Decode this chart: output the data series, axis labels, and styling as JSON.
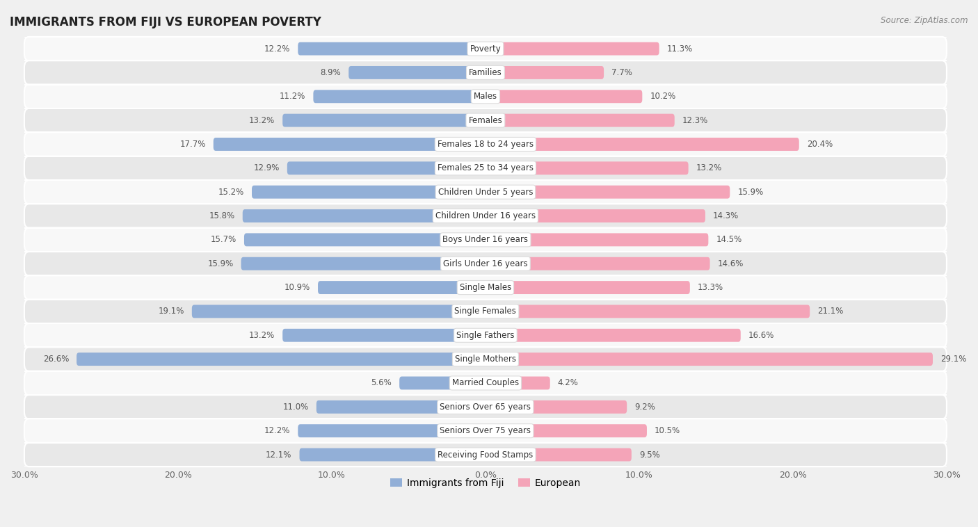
{
  "title": "IMMIGRANTS FROM FIJI VS EUROPEAN POVERTY",
  "source": "Source: ZipAtlas.com",
  "categories": [
    "Poverty",
    "Families",
    "Males",
    "Females",
    "Females 18 to 24 years",
    "Females 25 to 34 years",
    "Children Under 5 years",
    "Children Under 16 years",
    "Boys Under 16 years",
    "Girls Under 16 years",
    "Single Males",
    "Single Females",
    "Single Fathers",
    "Single Mothers",
    "Married Couples",
    "Seniors Over 65 years",
    "Seniors Over 75 years",
    "Receiving Food Stamps"
  ],
  "fiji_values": [
    12.2,
    8.9,
    11.2,
    13.2,
    17.7,
    12.9,
    15.2,
    15.8,
    15.7,
    15.9,
    10.9,
    19.1,
    13.2,
    26.6,
    5.6,
    11.0,
    12.2,
    12.1
  ],
  "european_values": [
    11.3,
    7.7,
    10.2,
    12.3,
    20.4,
    13.2,
    15.9,
    14.3,
    14.5,
    14.6,
    13.3,
    21.1,
    16.6,
    29.1,
    4.2,
    9.2,
    10.5,
    9.5
  ],
  "fiji_color": "#92afd7",
  "european_color": "#f4a4b8",
  "fiji_label": "Immigrants from Fiji",
  "european_label": "European",
  "background_color": "#f0f0f0",
  "row_bg_light": "#f8f8f8",
  "row_bg_dark": "#e8e8e8",
  "axis_limit": 30.0,
  "bar_height": 0.55,
  "label_fontsize": 8.5,
  "title_fontsize": 12,
  "value_fontsize": 8.5,
  "tick_fontsize": 9
}
